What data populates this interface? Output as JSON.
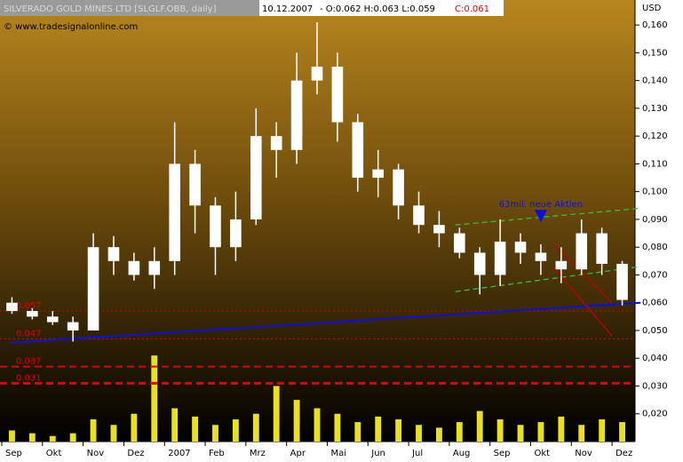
{
  "chart_data": {
    "type": "candlestick",
    "title": "SILVERADO GOLD MINES LTD [SLGLF.OBB, daily]",
    "header": {
      "date": "10.12.2007",
      "quote": "- O:0.062 H:0.063 L:0.059",
      "close": "C:0.061"
    },
    "watermark": "© www.tradesignalonline.com",
    "y_axis_label": "USD",
    "categories": [
      "Sep",
      null,
      "Okt",
      null,
      "Nov",
      null,
      "Dez",
      null,
      "2007",
      null,
      "Feb",
      null,
      "Mrz",
      null,
      "Apr",
      null,
      "Mai",
      null,
      "Jun",
      null,
      "Jul",
      null,
      "Aug",
      null,
      "Sep",
      null,
      "Okt",
      null,
      "Nov",
      null,
      "Dez"
    ],
    "open": [
      0.06,
      0.057,
      0.055,
      0.053,
      0.05,
      0.08,
      0.075,
      0.07,
      0.075,
      0.11,
      0.095,
      0.08,
      0.09,
      0.12,
      0.115,
      0.14,
      0.145,
      0.125,
      0.105,
      0.108,
      0.095,
      0.088,
      0.085,
      0.078,
      0.07,
      0.082,
      0.078,
      0.075,
      0.072,
      0.085,
      0.074
    ],
    "high": [
      0.062,
      0.058,
      0.057,
      0.055,
      0.085,
      0.084,
      0.078,
      0.08,
      0.125,
      0.115,
      0.098,
      0.1,
      0.13,
      0.125,
      0.15,
      0.161,
      0.15,
      0.128,
      0.115,
      0.11,
      0.1,
      0.093,
      0.087,
      0.08,
      0.09,
      0.085,
      0.081,
      0.08,
      0.09,
      0.087,
      0.075
    ],
    "low": [
      0.056,
      0.054,
      0.052,
      0.046,
      0.05,
      0.07,
      0.068,
      0.065,
      0.07,
      0.085,
      0.07,
      0.075,
      0.088,
      0.105,
      0.11,
      0.135,
      0.118,
      0.1,
      0.098,
      0.09,
      0.085,
      0.08,
      0.076,
      0.063,
      0.066,
      0.074,
      0.07,
      0.067,
      0.07,
      0.07,
      0.059
    ],
    "close": [
      0.057,
      0.055,
      0.053,
      0.05,
      0.08,
      0.075,
      0.07,
      0.075,
      0.11,
      0.095,
      0.08,
      0.09,
      0.12,
      0.115,
      0.14,
      0.145,
      0.125,
      0.105,
      0.108,
      0.095,
      0.088,
      0.085,
      0.078,
      0.07,
      0.082,
      0.078,
      0.075,
      0.072,
      0.085,
      0.074,
      0.061
    ],
    "candle_color": "#ffffff",
    "volume": [
      0.014,
      0.013,
      0.012,
      0.013,
      0.018,
      0.016,
      0.02,
      0.041,
      0.022,
      0.019,
      0.016,
      0.018,
      0.02,
      0.03,
      0.025,
      0.022,
      0.02,
      0.017,
      0.019,
      0.018,
      0.016,
      0.015,
      0.017,
      0.021,
      0.018,
      0.016,
      0.017,
      0.019,
      0.016,
      0.018,
      0.017
    ],
    "volume_color": "#e8e020",
    "ylim": [
      0.01,
      0.169
    ],
    "yticks": [
      {
        "value": 0.02,
        "label": "0,020"
      },
      {
        "value": 0.03,
        "label": "0,030"
      },
      {
        "value": 0.04,
        "label": "0,040"
      },
      {
        "value": 0.05,
        "label": "0,050"
      },
      {
        "value": 0.06,
        "label": "0,060"
      },
      {
        "value": 0.07,
        "label": "0,070"
      },
      {
        "value": 0.08,
        "label": "0,080"
      },
      {
        "value": 0.09,
        "label": "0,090"
      },
      {
        "value": 0.1,
        "label": "0,100"
      },
      {
        "value": 0.11,
        "label": "0,110"
      },
      {
        "value": 0.12,
        "label": "0,120"
      },
      {
        "value": 0.13,
        "label": "0,130"
      },
      {
        "value": 0.14,
        "label": "0,140"
      },
      {
        "value": 0.15,
        "label": "0,150"
      },
      {
        "value": 0.16,
        "label": "0,160"
      }
    ],
    "hlines": [
      0.057,
      0.047,
      0.037,
      0.031
    ],
    "hline_styles": [
      "dotted",
      "dotted",
      "dashed",
      "dashed"
    ],
    "hline_color": "#e00000",
    "trendlines": [
      {
        "color": "#1010d0",
        "style": "solid",
        "from": [
          -0.1,
          0.0456
        ],
        "to": [
          30.9,
          0.06
        ]
      },
      {
        "color": "#30c030",
        "style": "dashed",
        "from": [
          21.8,
          0.088
        ],
        "to": [
          30.9,
          0.094
        ]
      },
      {
        "color": "#30c030",
        "style": "dashed",
        "from": [
          21.8,
          0.064
        ],
        "to": [
          30.9,
          0.073
        ]
      },
      {
        "color": "#c00000",
        "style": "solid",
        "from": [
          26.6,
          0.081
        ],
        "to": [
          29.5,
          0.06
        ]
      },
      {
        "color": "#c00000",
        "style": "solid",
        "from": [
          26.6,
          0.073
        ],
        "to": [
          29.5,
          0.048
        ]
      }
    ],
    "annotation": {
      "text": "63mil. neue Aktien",
      "x": 26,
      "y": 0.089,
      "color": "#1010d0"
    }
  }
}
